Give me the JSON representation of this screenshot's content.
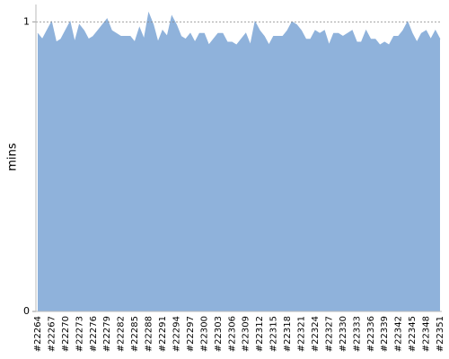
{
  "chart_data": {
    "type": "area",
    "y_label": "mins",
    "categories": [
      "#22264",
      null,
      null,
      "#22267",
      null,
      null,
      "#22270",
      null,
      null,
      "#22273",
      null,
      null,
      "#22276",
      null,
      null,
      "#22279",
      null,
      null,
      "#22282",
      null,
      null,
      "#22285",
      null,
      null,
      "#22288",
      null,
      null,
      "#22291",
      null,
      null,
      "#22294",
      null,
      null,
      "#22297",
      null,
      null,
      "#22300",
      null,
      null,
      "#22303",
      null,
      null,
      "#22306",
      null,
      null,
      "#22309",
      null,
      null,
      "#22312",
      null,
      null,
      "#22315",
      null,
      null,
      "#22318",
      null,
      null,
      "#22321",
      null,
      null,
      "#22324",
      null,
      null,
      "#22327",
      null,
      null,
      "#22330",
      null,
      null,
      "#22333",
      null,
      null,
      "#22336",
      null,
      null,
      "#22339",
      null,
      null,
      "#22342",
      null,
      null,
      "#22345",
      null,
      null,
      "#22348",
      null,
      null,
      "#22351"
    ],
    "values": [
      0.96,
      0.94,
      0.97,
      1.0,
      0.93,
      0.94,
      0.97,
      1.0,
      0.93,
      0.99,
      0.97,
      0.94,
      0.95,
      0.97,
      0.99,
      1.01,
      0.97,
      0.96,
      0.95,
      0.95,
      0.95,
      0.93,
      0.98,
      0.94,
      1.03,
      0.99,
      0.93,
      0.97,
      0.95,
      1.02,
      0.99,
      0.95,
      0.94,
      0.96,
      0.93,
      0.96,
      0.96,
      0.92,
      0.94,
      0.96,
      0.96,
      0.93,
      0.93,
      0.92,
      0.94,
      0.96,
      0.92,
      1.0,
      0.97,
      0.95,
      0.92,
      0.95,
      0.95,
      0.95,
      0.97,
      1.0,
      0.99,
      0.97,
      0.94,
      0.94,
      0.97,
      0.96,
      0.97,
      0.92,
      0.96,
      0.96,
      0.95,
      0.96,
      0.97,
      0.93,
      0.93,
      0.97,
      0.94,
      0.94,
      0.92,
      0.93,
      0.92,
      0.95,
      0.95,
      0.97,
      1.0,
      0.96,
      0.93,
      0.96,
      0.97,
      0.94,
      0.97,
      0.94
    ],
    "color": "#8fb2db",
    "ylim": [
      0,
      1.06
    ],
    "yticks": [
      0,
      1
    ],
    "grid": true
  }
}
